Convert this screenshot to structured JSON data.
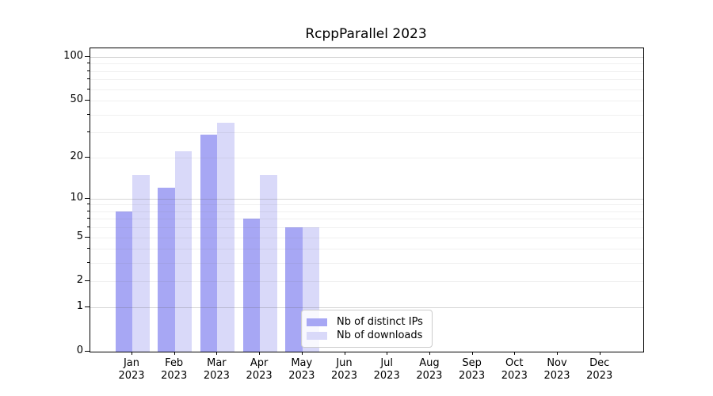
{
  "title": "RcppParallel 2023",
  "chart_data": {
    "type": "bar",
    "title": "RcppParallel 2023",
    "categories": [
      "Jan",
      "Feb",
      "Mar",
      "Apr",
      "May",
      "Jun",
      "Jul",
      "Aug",
      "Sep",
      "Oct",
      "Nov",
      "Dec"
    ],
    "x_tick_year_line": "2023",
    "series": [
      {
        "name": "Nb of distinct IPs",
        "color": "#a7a7f4",
        "values": [
          8,
          12,
          29,
          7,
          6,
          0,
          0,
          0,
          0,
          0,
          0,
          0
        ]
      },
      {
        "name": "Nb of downloads",
        "color": "#d9d9f9",
        "values": [
          15,
          22,
          35,
          15,
          6,
          0,
          0,
          0,
          0,
          0,
          0,
          0
        ]
      }
    ],
    "xlabel": "",
    "ylabel": "",
    "y_axis": {
      "scale": "log10(1+y)",
      "tick_values": [
        100,
        50,
        20,
        10,
        5,
        2,
        1,
        0
      ],
      "major_gridlines": [
        1,
        10,
        100
      ],
      "minor_gridlines": [
        2,
        3,
        4,
        5,
        6,
        7,
        8,
        9,
        20,
        30,
        40,
        50,
        60,
        70,
        80,
        90
      ],
      "ylim": [
        0,
        100
      ],
      "grid": "horizontal"
    },
    "legend_position": "inside bottom, right of center"
  },
  "legend": {
    "items": [
      {
        "label": "Nb of distinct IPs"
      },
      {
        "label": "Nb of downloads"
      }
    ]
  }
}
